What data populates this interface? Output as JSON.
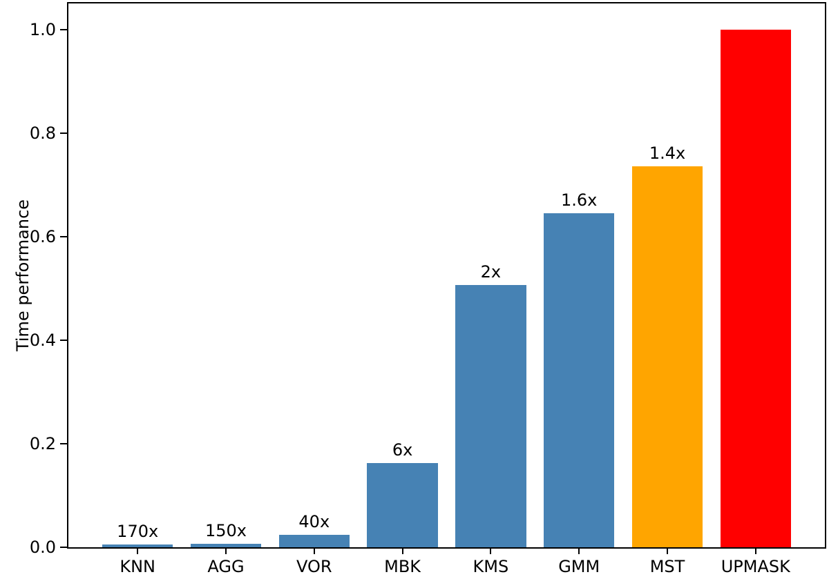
{
  "chart_data": {
    "type": "bar",
    "title": "",
    "xlabel": "",
    "ylabel": "Time performance",
    "categories": [
      "KNN",
      "AGG",
      "VOR",
      "MBK",
      "KMS",
      "GMM",
      "MST",
      "UPMASK"
    ],
    "values": [
      0.006,
      0.007,
      0.024,
      0.162,
      0.507,
      0.645,
      0.735,
      1.0
    ],
    "bar_annotations": [
      "170x",
      "150x",
      "40x",
      "6x",
      "2x",
      "1.6x",
      "1.4x",
      ""
    ],
    "bar_colors": [
      "#4682b4",
      "#4682b4",
      "#4682b4",
      "#4682b4",
      "#4682b4",
      "#4682b4",
      "#ffa500",
      "#ff0000"
    ],
    "yticks": [
      "0.0",
      "0.2",
      "0.4",
      "0.6",
      "0.8",
      "1.0"
    ],
    "ylim": [
      0,
      1.05
    ],
    "grid": false,
    "legend": null,
    "axis_color": "#000000",
    "background_color": "#ffffff"
  }
}
